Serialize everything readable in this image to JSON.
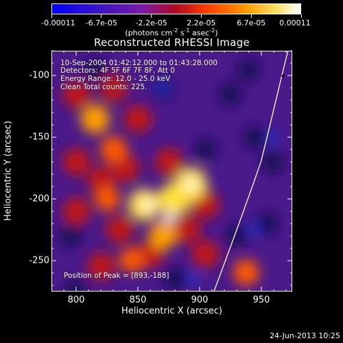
{
  "colorbar": {
    "tick_labels": [
      "-0.00011",
      "-6.7e-05",
      "-2.2e-05",
      "2.2e-05",
      "6.7e-05",
      "0.00011"
    ],
    "units_prefix": "(photons cm",
    "units_sup1": "-2",
    "units_mid": " s",
    "units_sup2": "-1",
    "units_mid2": " asec",
    "units_sup3": "-2",
    "units_suffix": ")",
    "colors": [
      "#1a10b0",
      "#6f20b0",
      "#c81020",
      "#ff5a00",
      "#ffc800",
      "#ffffff"
    ]
  },
  "chart_data": {
    "type": "heatmap",
    "title": "Reconstructed RHESSI Image",
    "xlabel": "Heliocentric X (arcsec)",
    "ylabel": "Heliocentric Y (arcsec)",
    "xlim": [
      780,
      975
    ],
    "ylim": [
      -275,
      -80
    ],
    "x_ticks": [
      800,
      850,
      900,
      950
    ],
    "y_ticks": [
      -100,
      -150,
      -200,
      -250
    ],
    "color_range": [
      -0.00011,
      0.00011
    ],
    "limb_curve": [
      [
        912,
        -275
      ],
      [
        925,
        -240
      ],
      [
        938,
        -205
      ],
      [
        950,
        -170
      ],
      [
        960,
        -130
      ],
      [
        968,
        -95
      ],
      [
        972,
        -80
      ]
    ],
    "peak": {
      "x": 893,
      "y": -188
    },
    "bright_regions": [
      {
        "x": 880,
        "y": -200,
        "intensity": 1.0
      },
      {
        "x": 855,
        "y": -205,
        "intensity": 0.95
      },
      {
        "x": 893,
        "y": -188,
        "intensity": 1.0
      },
      {
        "x": 830,
        "y": -160,
        "intensity": 0.7
      },
      {
        "x": 815,
        "y": -135,
        "intensity": 0.8
      },
      {
        "x": 870,
        "y": -230,
        "intensity": 0.75
      },
      {
        "x": 845,
        "y": -250,
        "intensity": 0.6
      },
      {
        "x": 938,
        "y": -260,
        "intensity": 0.65
      },
      {
        "x": 825,
        "y": -200,
        "intensity": 0.6
      }
    ],
    "annotations": {
      "time_range": "10-Sep-2004 01:42:12.000 to 01:43:28.000",
      "detectors": "Detectors: 4F 5F 6F 7F 8F, Att 0",
      "energy": "Energy Range: 12.0 - 25.0 keV",
      "clean": "Clean     Total counts: 225.",
      "peak_label": "Position of Peak = [893,-188]"
    }
  },
  "footer": {
    "timestamp": "24-Jun-2013 10:25"
  }
}
